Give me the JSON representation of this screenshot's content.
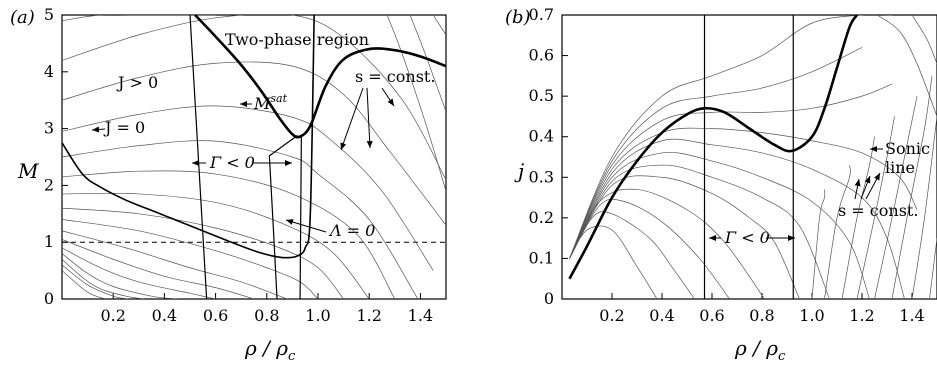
{
  "chart_data": [
    {
      "type": "line",
      "panel_label": "(a)",
      "ylabel": "M",
      "xlabel": "ρ / ρc",
      "xlim": [
        0.0,
        1.5
      ],
      "ylim": [
        0,
        5
      ],
      "x_ticks": [
        "0.2",
        "0.4",
        "0.6",
        "0.8",
        "1.0",
        "1.2",
        "1.4"
      ],
      "y_ticks": [
        "0",
        "1",
        "2",
        "3",
        "4",
        "5"
      ],
      "grid": false,
      "annotations": {
        "two_phase": "Two-phase region",
        "j_positive": "J > 0",
        "j_zero": "J = 0",
        "m_sat": "Msat",
        "s_const": "s = const.",
        "gamma_neg": "Γ < 0",
        "lambda_zero": "Λ = 0"
      },
      "reference_line": {
        "y": 1,
        "style": "dashed"
      },
      "series": [
        {
          "role": "saturation",
          "x": [
            0.52,
            0.6,
            0.7,
            0.78,
            0.85,
            0.9,
            0.93,
            0.97,
            1.03,
            1.1,
            1.2,
            1.3,
            1.4,
            1.5
          ],
          "y": [
            5.0,
            4.62,
            4.12,
            3.65,
            3.18,
            2.9,
            2.86,
            3.05,
            3.75,
            4.22,
            4.4,
            4.38,
            4.27,
            4.1
          ]
        },
        {
          "role": "J=0",
          "x": [
            0.0,
            0.08,
            0.15,
            0.25,
            0.35,
            0.45,
            0.55,
            0.65,
            0.75,
            0.82,
            0.86,
            0.89,
            0.92,
            0.95,
            0.97,
            0.985
          ],
          "y": [
            2.75,
            2.2,
            1.97,
            1.74,
            1.56,
            1.38,
            1.2,
            1.02,
            0.85,
            0.76,
            0.73,
            0.73,
            0.76,
            0.9,
            1.5,
            5.0
          ]
        },
        {
          "role": "gamma-boundary-left",
          "x": [
            0.5,
            0.565
          ],
          "y": [
            5.0,
            0.0
          ]
        },
        {
          "role": "gamma-boundary-right",
          "x": [
            0.92,
            0.81,
            0.825,
            0.84
          ],
          "y": [
            2.88,
            2.52,
            1.3,
            0.0
          ]
        },
        {
          "role": "lambda-boundary",
          "x": [
            0.935,
            0.93
          ],
          "y": [
            2.86,
            0.0
          ]
        },
        {
          "role": "s-const",
          "x": [
            0.0,
            0.3,
            0.6,
            0.9,
            1.1,
            1.33,
            1.5
          ],
          "y": [
            4.2,
            4.65,
            4.95,
            5.0,
            4.6,
            3.5,
            2.1
          ]
        },
        {
          "role": "s-const",
          "x": [
            0.0,
            0.3,
            0.6,
            0.9,
            1.1,
            1.28,
            1.5
          ],
          "y": [
            3.5,
            3.9,
            4.15,
            4.1,
            3.6,
            2.6,
            1.3
          ]
        },
        {
          "role": "s-const",
          "x": [
            0.0,
            0.3,
            0.6,
            0.9,
            1.05,
            1.25,
            1.45
          ],
          "y": [
            2.95,
            3.25,
            3.4,
            3.2,
            2.8,
            1.9,
            0.5
          ]
        },
        {
          "role": "s-const",
          "x": [
            0.0,
            0.3,
            0.6,
            0.9,
            1.0,
            1.2,
            1.39
          ],
          "y": [
            2.5,
            2.7,
            2.78,
            2.5,
            2.2,
            1.4,
            0.0
          ]
        },
        {
          "role": "s-const",
          "x": [
            0.0,
            0.3,
            0.6,
            0.9,
            1.15,
            1.3
          ],
          "y": [
            2.15,
            2.25,
            2.2,
            1.85,
            1.15,
            0.0
          ]
        },
        {
          "role": "s-const",
          "x": [
            0.0,
            0.3,
            0.6,
            0.85,
            1.05,
            1.2
          ],
          "y": [
            1.85,
            1.85,
            1.7,
            1.35,
            0.85,
            0.0
          ]
        },
        {
          "role": "s-const",
          "x": [
            0.0,
            0.3,
            0.6,
            0.85,
            1.0,
            1.1
          ],
          "y": [
            1.6,
            1.5,
            1.25,
            0.9,
            0.55,
            0.0
          ]
        },
        {
          "role": "s-const",
          "x": [
            0.0,
            0.3,
            0.6,
            0.8,
            0.93,
            1.0
          ],
          "y": [
            1.4,
            1.2,
            0.85,
            0.55,
            0.3,
            0.0
          ]
        },
        {
          "role": "s-const",
          "x": [
            0.0,
            0.25,
            0.5,
            0.7,
            0.88
          ],
          "y": [
            1.2,
            0.9,
            0.55,
            0.3,
            0.0
          ]
        },
        {
          "role": "s-const",
          "x": [
            0.0,
            0.2,
            0.4,
            0.6,
            0.75
          ],
          "y": [
            1.05,
            0.7,
            0.4,
            0.2,
            0.0
          ]
        },
        {
          "role": "s-const",
          "x": [
            0.0,
            0.15,
            0.3,
            0.5,
            0.6
          ],
          "y": [
            0.9,
            0.55,
            0.3,
            0.1,
            0.0
          ]
        },
        {
          "role": "s-const",
          "x": [
            0.0,
            0.1,
            0.2,
            0.35,
            0.45
          ],
          "y": [
            0.8,
            0.45,
            0.22,
            0.05,
            0.0
          ]
        },
        {
          "role": "s-const",
          "x": [
            0.0,
            0.08,
            0.15,
            0.25,
            0.32
          ],
          "y": [
            0.7,
            0.38,
            0.18,
            0.05,
            0.0
          ]
        },
        {
          "role": "s-const",
          "x": [
            0.0,
            0.1,
            0.2,
            0.26
          ],
          "y": [
            0.6,
            0.25,
            0.05,
            0.0
          ]
        },
        {
          "role": "s-const",
          "x": [
            0.0,
            0.1,
            0.17
          ],
          "y": [
            0.5,
            0.12,
            0.0
          ]
        },
        {
          "role": "s-const",
          "x": [
            0.0,
            0.15,
            0.3,
            0.6
          ],
          "y": [
            4.9,
            5.0,
            5.0,
            5.0
          ]
        },
        {
          "role": "s-const",
          "x": [
            1.45,
            1.5
          ],
          "y": [
            5.0,
            4.65
          ]
        },
        {
          "role": "s-const",
          "x": [
            1.36,
            1.42,
            1.5
          ],
          "y": [
            5.0,
            4.3,
            3.3
          ]
        },
        {
          "role": "s-const",
          "x": [
            1.27,
            1.33,
            1.42,
            1.5
          ],
          "y": [
            5.0,
            4.3,
            3.1,
            1.9
          ]
        }
      ]
    },
    {
      "type": "line",
      "panel_label": "(b)",
      "ylabel": "j",
      "xlabel": "ρ / ρc",
      "xlim": [
        0.0,
        1.5
      ],
      "ylim": [
        0,
        0.7
      ],
      "x_ticks": [
        "0.2",
        "0.4",
        "0.6",
        "0.8",
        "1.0",
        "1.2",
        "1.4"
      ],
      "y_ticks": [
        "0",
        "0.1",
        "0.2",
        "0.3",
        "0.4",
        "0.5",
        "0.6",
        "0.7"
      ],
      "grid": false,
      "annotations": {
        "sonic": "Sonic line",
        "gamma_neg": "Γ < 0",
        "s_const": "s = const."
      },
      "series": [
        {
          "role": "sonic",
          "x": [
            0.03,
            0.1,
            0.2,
            0.3,
            0.4,
            0.5,
            0.57,
            0.65,
            0.75,
            0.85,
            0.92,
            1.0,
            1.05,
            1.1,
            1.15,
            1.18
          ],
          "y": [
            0.05,
            0.13,
            0.25,
            0.34,
            0.41,
            0.455,
            0.47,
            0.46,
            0.42,
            0.38,
            0.365,
            0.4,
            0.47,
            0.57,
            0.67,
            0.7
          ]
        },
        {
          "role": "gamma-boundary-left",
          "x": [
            0.57,
            0.57
          ],
          "y": [
            0.7,
            0.0
          ]
        },
        {
          "role": "gamma-boundary-right",
          "x": [
            0.925,
            0.925
          ],
          "y": [
            0.7,
            0.0
          ]
        },
        {
          "role": "s-const",
          "x": [
            0.03,
            0.2,
            0.4,
            0.6,
            0.8,
            1.0,
            1.2,
            1.32
          ],
          "y": [
            0.1,
            0.35,
            0.5,
            0.55,
            0.6,
            0.68,
            0.7,
            0.7
          ]
        },
        {
          "role": "s-const",
          "x": [
            0.03,
            0.2,
            0.4,
            0.6,
            0.8,
            1.0,
            1.2
          ],
          "y": [
            0.1,
            0.34,
            0.47,
            0.5,
            0.52,
            0.56,
            0.62
          ]
        },
        {
          "role": "s-const",
          "x": [
            0.03,
            0.2,
            0.4,
            0.6,
            0.8,
            1.0,
            1.2,
            1.32
          ],
          "y": [
            0.1,
            0.33,
            0.44,
            0.46,
            0.46,
            0.47,
            0.5,
            0.53
          ]
        },
        {
          "role": "s-const",
          "x": [
            0.03,
            0.2,
            0.4,
            0.6,
            0.8,
            1.0,
            1.2,
            1.35,
            1.42
          ],
          "y": [
            0.1,
            0.32,
            0.41,
            0.42,
            0.41,
            0.39,
            0.36,
            0.3,
            0.22
          ]
        },
        {
          "role": "s-const",
          "x": [
            0.03,
            0.2,
            0.4,
            0.6,
            0.8,
            1.0,
            1.2,
            1.3,
            1.37
          ],
          "y": [
            0.1,
            0.31,
            0.39,
            0.38,
            0.36,
            0.32,
            0.25,
            0.15,
            0.0
          ]
        },
        {
          "role": "s-const",
          "x": [
            0.03,
            0.2,
            0.4,
            0.6,
            0.8,
            1.0,
            1.15,
            1.23
          ],
          "y": [
            0.1,
            0.3,
            0.36,
            0.34,
            0.3,
            0.24,
            0.14,
            0.0
          ]
        },
        {
          "role": "s-const",
          "x": [
            0.03,
            0.2,
            0.4,
            0.6,
            0.8,
            0.95,
            1.07
          ],
          "y": [
            0.1,
            0.29,
            0.33,
            0.3,
            0.25,
            0.18,
            0.0
          ]
        },
        {
          "role": "s-const",
          "x": [
            0.03,
            0.2,
            0.4,
            0.6,
            0.75,
            0.85,
            0.95
          ],
          "y": [
            0.1,
            0.28,
            0.3,
            0.26,
            0.2,
            0.14,
            0.0
          ]
        },
        {
          "role": "s-const",
          "x": [
            0.03,
            0.15,
            0.3,
            0.5,
            0.65,
            0.81
          ],
          "y": [
            0.1,
            0.24,
            0.27,
            0.22,
            0.14,
            0.0
          ]
        },
        {
          "role": "s-const",
          "x": [
            0.03,
            0.15,
            0.25,
            0.4,
            0.55,
            0.67
          ],
          "y": [
            0.1,
            0.23,
            0.24,
            0.19,
            0.1,
            0.0
          ]
        },
        {
          "role": "s-const",
          "x": [
            0.03,
            0.12,
            0.2,
            0.35,
            0.45,
            0.53
          ],
          "y": [
            0.1,
            0.2,
            0.21,
            0.15,
            0.07,
            0.0
          ]
        },
        {
          "role": "s-const",
          "x": [
            0.03,
            0.1,
            0.2,
            0.3,
            0.38
          ],
          "y": [
            0.1,
            0.17,
            0.17,
            0.08,
            0.0
          ]
        },
        {
          "role": "s-const",
          "x": [
            1.0,
            1.03,
            1.05,
            1.05
          ],
          "y": [
            0.0,
            0.2,
            0.25,
            0.27
          ]
        },
        {
          "role": "s-const",
          "x": [
            1.05,
            1.1,
            1.15,
            1.15
          ],
          "y": [
            0.0,
            0.2,
            0.3,
            0.33
          ]
        },
        {
          "role": "s-const",
          "x": [
            1.12,
            1.18,
            1.23,
            1.25
          ],
          "y": [
            0.0,
            0.2,
            0.33,
            0.4
          ]
        },
        {
          "role": "s-const",
          "x": [
            1.18,
            1.25,
            1.3,
            1.33
          ],
          "y": [
            0.0,
            0.2,
            0.35,
            0.45
          ]
        },
        {
          "role": "s-const",
          "x": [
            1.25,
            1.32,
            1.38,
            1.42
          ],
          "y": [
            0.0,
            0.2,
            0.38,
            0.5
          ]
        },
        {
          "role": "s-const",
          "x": [
            1.32,
            1.38,
            1.45,
            1.48
          ],
          "y": [
            0.0,
            0.2,
            0.42,
            0.55
          ]
        },
        {
          "role": "s-const",
          "x": [
            1.4,
            1.45,
            1.5
          ],
          "y": [
            0.0,
            0.2,
            0.45
          ]
        },
        {
          "role": "s-const",
          "x": [
            1.47,
            1.5
          ],
          "y": [
            0.0,
            0.15
          ]
        },
        {
          "role": "s-const",
          "x": [
            1.26,
            1.35,
            1.42,
            1.5
          ],
          "y": [
            0.7,
            0.66,
            0.58,
            0.45
          ]
        },
        {
          "role": "s-const",
          "x": [
            1.4,
            1.46,
            1.5
          ],
          "y": [
            0.7,
            0.64,
            0.58
          ]
        }
      ]
    }
  ]
}
